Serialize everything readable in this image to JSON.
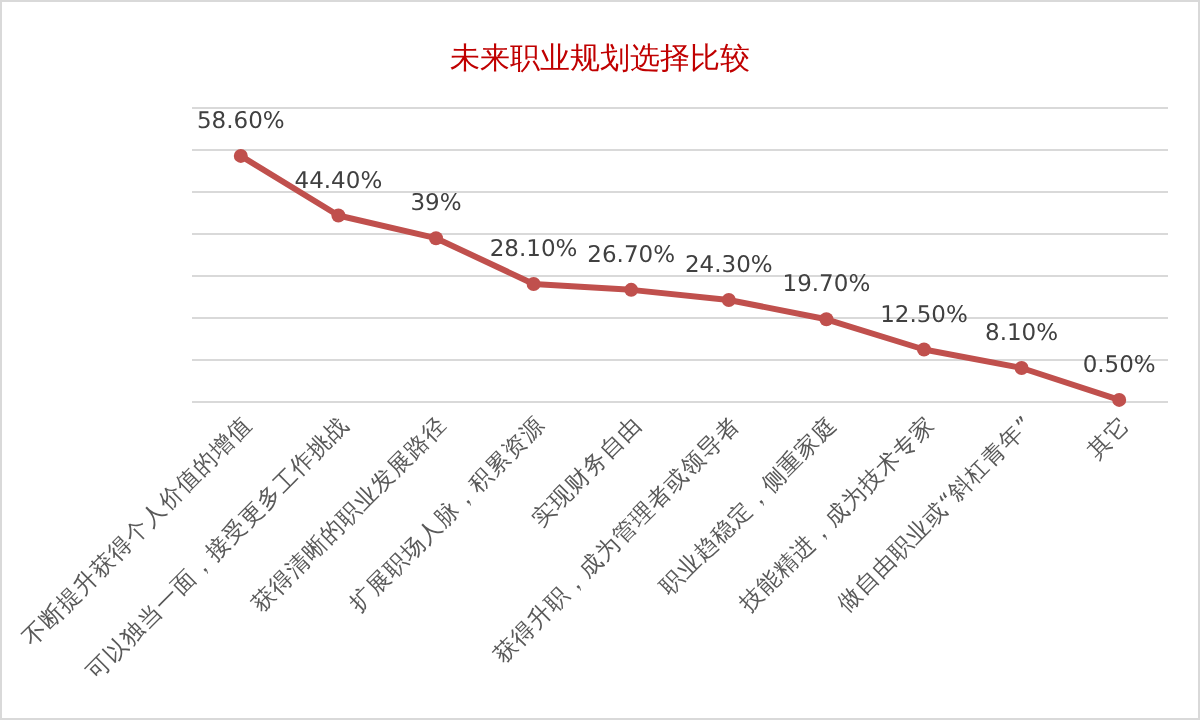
{
  "chart_data": {
    "type": "line",
    "title": "未来职业规划选择比较",
    "categories": [
      "不断提升获得个人价值的增值",
      "可以独当一面，接受更多工作挑战",
      "获得清晰的职业发展路径",
      "扩展职场人脉，积累资源",
      "实现财务自由",
      "获得升职，成为管理者或领导者",
      "职业趋稳定，侧重家庭",
      "技能精进，成为技术专家",
      "做自由职业或“斜杠青年”",
      "其它"
    ],
    "series": [
      {
        "color": "#c0504d",
        "values": [
          58.6,
          44.4,
          39,
          28.1,
          26.7,
          24.3,
          19.7,
          12.5,
          8.1,
          0.5
        ],
        "value_labels": [
          "58.60%",
          "44.40%",
          "39%",
          "28.10%",
          "26.70%",
          "24.30%",
          "19.70%",
          "12.50%",
          "8.10%",
          "0.50%"
        ]
      }
    ],
    "ylim": [
      0,
      70
    ],
    "yticks": [
      {
        "value": 0,
        "label": null
      },
      {
        "value": 10,
        "label": null
      },
      {
        "value": 20,
        "label": null
      },
      {
        "value": 30,
        "label": null
      },
      {
        "value": 40,
        "label": null
      },
      {
        "value": 50,
        "label": null
      },
      {
        "value": 60,
        "label": null
      },
      {
        "value": 70,
        "label": null
      }
    ],
    "grid": "y",
    "marker": "circle",
    "line_style": "solid"
  }
}
